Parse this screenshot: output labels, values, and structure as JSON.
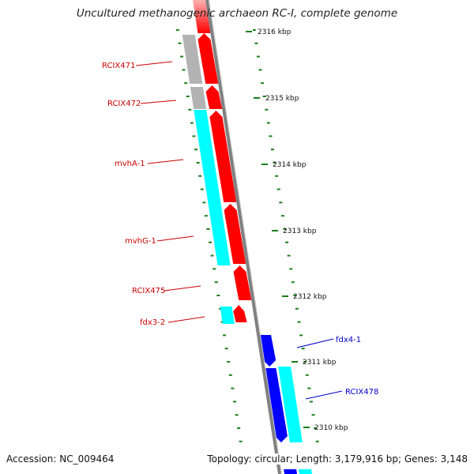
{
  "title": "Uncultured methanogenic archaeon RC-I, complete genome",
  "footer": {
    "accession": "Accession: NC_009464",
    "topology": "Topology: circular; Length: 3,179,916 bp; Genes: 3,148"
  },
  "colors": {
    "forward_cds": "#ff0000",
    "reverse_cds": "#0000ff",
    "cyan_feature": "#00ffff",
    "gray_feature": "#b3b3b3",
    "tick": "#1a7f1a",
    "backbone": "#808080",
    "forward_label": "#cc0000",
    "reverse_label": "#0000cc"
  },
  "scale_ticks": [
    {
      "label": "2316 kbp",
      "kbp": 2316
    },
    {
      "label": "2315 kbp",
      "kbp": 2315
    },
    {
      "label": "2314 kbp",
      "kbp": 2314
    },
    {
      "label": "2313 kbp",
      "kbp": 2313
    },
    {
      "label": "2312 kbp",
      "kbp": 2312
    },
    {
      "label": "2311 kbp",
      "kbp": 2311
    },
    {
      "label": "2310 kbp",
      "kbp": 2310
    }
  ],
  "gene_labels": [
    {
      "name": "RCIX471",
      "strand": "forward"
    },
    {
      "name": "RCIX472",
      "strand": "forward"
    },
    {
      "name": "mvhA-1",
      "strand": "forward"
    },
    {
      "name": "mvhG-1",
      "strand": "forward"
    },
    {
      "name": "RCIX475",
      "strand": "forward"
    },
    {
      "name": "fdx3-2",
      "strand": "forward"
    },
    {
      "name": "fdx4-1",
      "strand": "reverse"
    },
    {
      "name": "RCIX478",
      "strand": "reverse"
    }
  ]
}
